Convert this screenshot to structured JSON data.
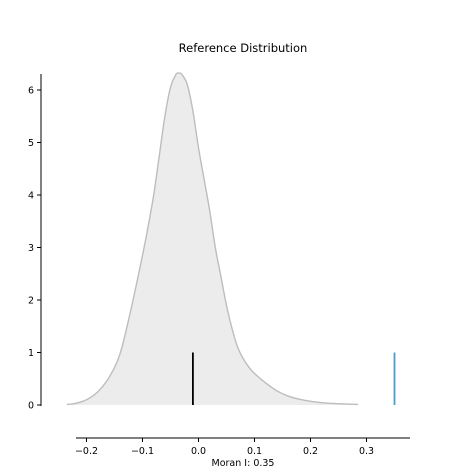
{
  "chart_data": {
    "type": "area",
    "title": "Reference Distribution",
    "xlabel": "Moran I: 0.35",
    "ylabel": "",
    "xlim": [
      -0.235,
      0.355
    ],
    "ylim": [
      0,
      6.3
    ],
    "x_ticks": [
      -0.2,
      -0.1,
      0.0,
      0.1,
      0.2,
      0.3
    ],
    "x_tick_labels": [
      "−0.2",
      "−0.1",
      "0.0",
      "0.1",
      "0.2",
      "0.3"
    ],
    "y_ticks": [
      0,
      1,
      2,
      3,
      4,
      5,
      6
    ],
    "y_tick_labels": [
      "0",
      "1",
      "2",
      "3",
      "4",
      "5",
      "6"
    ],
    "density": {
      "x": [
        -0.235,
        -0.22,
        -0.2,
        -0.18,
        -0.16,
        -0.14,
        -0.12,
        -0.1,
        -0.09,
        -0.08,
        -0.07,
        -0.06,
        -0.05,
        -0.04,
        -0.035,
        -0.03,
        -0.02,
        -0.01,
        0.0,
        0.01,
        0.02,
        0.03,
        0.04,
        0.05,
        0.06,
        0.07,
        0.08,
        0.09,
        0.1,
        0.12,
        0.14,
        0.16,
        0.18,
        0.2,
        0.22,
        0.24,
        0.26,
        0.285
      ],
      "y": [
        0.01,
        0.03,
        0.1,
        0.25,
        0.52,
        0.98,
        1.85,
        2.85,
        3.4,
        4.0,
        4.75,
        5.5,
        6.05,
        6.3,
        6.32,
        6.3,
        6.1,
        5.6,
        4.9,
        4.3,
        3.7,
        3.0,
        2.45,
        1.9,
        1.45,
        1.1,
        0.88,
        0.72,
        0.6,
        0.42,
        0.27,
        0.17,
        0.11,
        0.07,
        0.045,
        0.03,
        0.02,
        0.01
      ]
    },
    "markers": [
      {
        "x": -0.01,
        "height": 1,
        "color": "#000000"
      },
      {
        "x": 0.35,
        "height": 1,
        "color": "#4a9cc9"
      }
    ],
    "fill_color": "#ececec",
    "line_color": "#bdbdbd",
    "grid": false
  }
}
